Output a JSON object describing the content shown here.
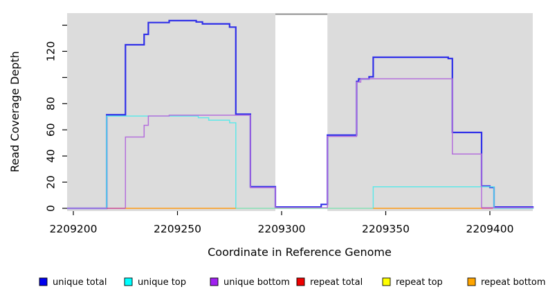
{
  "chart_data": {
    "type": "line",
    "subtype": "step-after-coverage-plot",
    "title": "",
    "xlabel": "Coordinate in Reference Genome",
    "ylabel": "Read Coverage Depth",
    "xlim": [
      2209197,
      2209421
    ],
    "ylim": [
      0,
      149
    ],
    "x_ticks": [
      {
        "v": 2209200,
        "label": "2209200"
      },
      {
        "v": 2209250,
        "label": "2209250"
      },
      {
        "v": 2209300,
        "label": "2209300"
      },
      {
        "v": 2209350,
        "label": "2209350"
      },
      {
        "v": 2209400,
        "label": "2209400"
      }
    ],
    "y_ticks": [
      {
        "v": 0,
        "label": "0"
      },
      {
        "v": 20,
        "label": "20"
      },
      {
        "v": 40,
        "label": "40"
      },
      {
        "v": 60,
        "label": "60"
      },
      {
        "v": 80,
        "label": "80"
      },
      {
        "v": 100,
        "label": ""
      },
      {
        "v": 120,
        "label": "120"
      },
      {
        "v": 140,
        "label": ""
      }
    ],
    "plot_background": "#DCDCDC",
    "page_background": "#FFFFFF",
    "grid": "off",
    "masked_region": {
      "from": 2209297,
      "to": 2209322,
      "fill": "#FFFFFF",
      "top_border_color": "#8C8C8C"
    },
    "series": [
      {
        "name": "unique total",
        "legend_color": "#0000EE",
        "line_color": "#2E2EE8",
        "width": 2.2,
        "segments": [
          [
            [
              2209197,
              0
            ],
            [
              2209216,
              71.5
            ],
            [
              2209225,
              125
            ],
            [
              2209234,
              133
            ],
            [
              2209236,
              142
            ],
            [
              2209246,
              143.5
            ],
            [
              2209259,
              142.5
            ],
            [
              2209262,
              141
            ],
            [
              2209275,
              138.5
            ],
            [
              2209278,
              72
            ],
            [
              2209285,
              16.5
            ],
            [
              2209297,
              1
            ],
            [
              2209319,
              3
            ],
            [
              2209322,
              56
            ],
            [
              2209336,
              97
            ],
            [
              2209337,
              99
            ],
            [
              2209342,
              100.5
            ],
            [
              2209344,
              115.5
            ],
            [
              2209380,
              114.5
            ],
            [
              2209382,
              58
            ],
            [
              2209396,
              17
            ],
            [
              2209400,
              16
            ],
            [
              2209402,
              1
            ],
            [
              2209421,
              1
            ]
          ]
        ]
      },
      {
        "name": "unique top",
        "legend_color": "#00FFFF",
        "line_color": "#5FE8E8",
        "width": 1.5,
        "segments": [
          [
            [
              2209197,
              0
            ],
            [
              2209216,
              70.5
            ],
            [
              2209260,
              69.3
            ],
            [
              2209265,
              67.4
            ],
            [
              2209275,
              65.4
            ],
            [
              2209278,
              0
            ],
            [
              2209344,
              16.5
            ],
            [
              2209402,
              0
            ],
            [
              2209421,
              0
            ]
          ]
        ]
      },
      {
        "name": "unique bottom",
        "legend_color": "#A020F0",
        "line_color": "#B46FDC",
        "width": 1.5,
        "segments": [
          [
            [
              2209197,
              0
            ],
            [
              2209225,
              54.5
            ],
            [
              2209234,
              63.5
            ],
            [
              2209236,
              70.6
            ],
            [
              2209246,
              71.2
            ],
            [
              2209285,
              15.8
            ],
            [
              2209297,
              0.5
            ],
            [
              2209322,
              55
            ],
            [
              2209336,
              96.5
            ],
            [
              2209338,
              99
            ],
            [
              2209382,
              41.5
            ],
            [
              2209396,
              0.5
            ],
            [
              2209421,
              0.5
            ]
          ]
        ]
      },
      {
        "name": "repeat total",
        "legend_color": "#EE0000",
        "line_color": "#D6336E",
        "width": 1.1,
        "segments": [
          [
            [
              2209216,
              0
            ],
            [
              2209225,
              0
            ]
          ],
          [
            [
              2209396,
              0
            ],
            [
              2209401.5,
              0
            ]
          ]
        ]
      },
      {
        "name": "repeat top",
        "legend_color": "#FFFF00",
        "line_color": "#9BDC9B",
        "width": 1.1,
        "segments": [
          [
            [
              2209278,
              0
            ],
            [
              2209344,
              0
            ]
          ]
        ]
      },
      {
        "name": "repeat bottom",
        "legend_color": "#FFA500",
        "line_color": "#FF9913",
        "width": 1.5,
        "segments": [
          [
            [
              2209225,
              0
            ],
            [
              2209278,
              0
            ]
          ],
          [
            [
              2209344,
              0
            ],
            [
              2209396,
              0
            ]
          ]
        ]
      }
    ],
    "legend": {
      "position": "bottom",
      "entries": [
        {
          "label": "unique total",
          "color": "#0000EE"
        },
        {
          "label": "unique top",
          "color": "#00FFFF"
        },
        {
          "label": "unique bottom",
          "color": "#A020F0"
        },
        {
          "label": "repeat total",
          "color": "#EE0000"
        },
        {
          "label": "repeat top",
          "color": "#FFFF00"
        },
        {
          "label": "repeat bottom",
          "color": "#FFA500"
        }
      ]
    }
  }
}
